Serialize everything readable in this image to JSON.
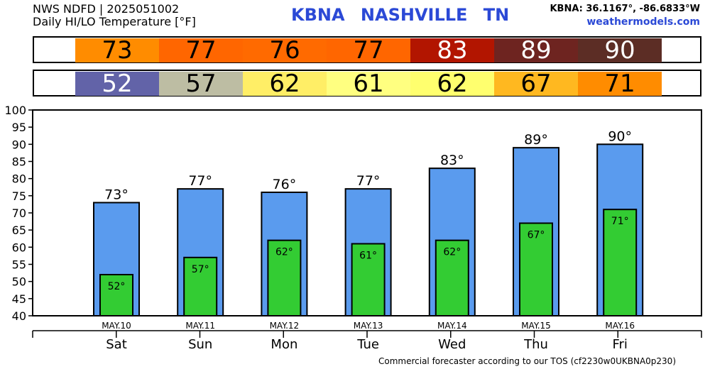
{
  "header": {
    "line1": "NWS NDFD | 2025051002",
    "line2": "Daily HI/LO Temperature [°F]",
    "station": "KBNA  NASHVILLE    TN",
    "coords": "KBNA: 36.1167°, -86.6833°W",
    "site": "weathermodels.com"
  },
  "hi_row": [
    {
      "value": "73",
      "bg": "#ff8c00",
      "fg": "#000000"
    },
    {
      "value": "77",
      "bg": "#ff6600",
      "fg": "#000000"
    },
    {
      "value": "76",
      "bg": "#ff6a00",
      "fg": "#000000"
    },
    {
      "value": "77",
      "bg": "#ff6600",
      "fg": "#000000"
    },
    {
      "value": "83",
      "bg": "#b21500",
      "fg": "#ffffff"
    },
    {
      "value": "89",
      "bg": "#6e2420",
      "fg": "#ffffff"
    },
    {
      "value": "90",
      "bg": "#5c2d25",
      "fg": "#ffffff"
    }
  ],
  "lo_row": [
    {
      "value": "52",
      "bg": "#6263a8",
      "fg": "#ffffff"
    },
    {
      "value": "57",
      "bg": "#bdbda3",
      "fg": "#000000"
    },
    {
      "value": "62",
      "bg": "#ffee66",
      "fg": "#000000"
    },
    {
      "value": "61",
      "bg": "#ffff80",
      "fg": "#000000"
    },
    {
      "value": "62",
      "bg": "#ffff6e",
      "fg": "#000000"
    },
    {
      "value": "67",
      "bg": "#ffb820",
      "fg": "#000000"
    },
    {
      "value": "71",
      "bg": "#ff8c00",
      "fg": "#000000"
    }
  ],
  "chart_data": {
    "type": "bar",
    "categories": [
      "Sat",
      "Sun",
      "Mon",
      "Tue",
      "Wed",
      "Thu",
      "Fri"
    ],
    "dates": [
      "MAY.10",
      "MAY.11",
      "MAY.12",
      "MAY.13",
      "MAY.14",
      "MAY.15",
      "MAY.16"
    ],
    "series": [
      {
        "values": [
          73,
          77,
          76,
          77,
          83,
          89,
          90
        ],
        "color": "#5a9bee"
      },
      {
        "values": [
          52,
          57,
          62,
          61,
          62,
          67,
          71
        ],
        "color": "#33cc33"
      }
    ],
    "value_label_suffix": "°",
    "yticks": [
      40,
      45,
      50,
      55,
      60,
      65,
      70,
      75,
      80,
      85,
      90,
      95,
      100
    ],
    "ylim": [
      40,
      100
    ],
    "grid": false
  },
  "footer": "Commercial forecaster according to our TOS (cf2230w0UKBNA0p230)"
}
